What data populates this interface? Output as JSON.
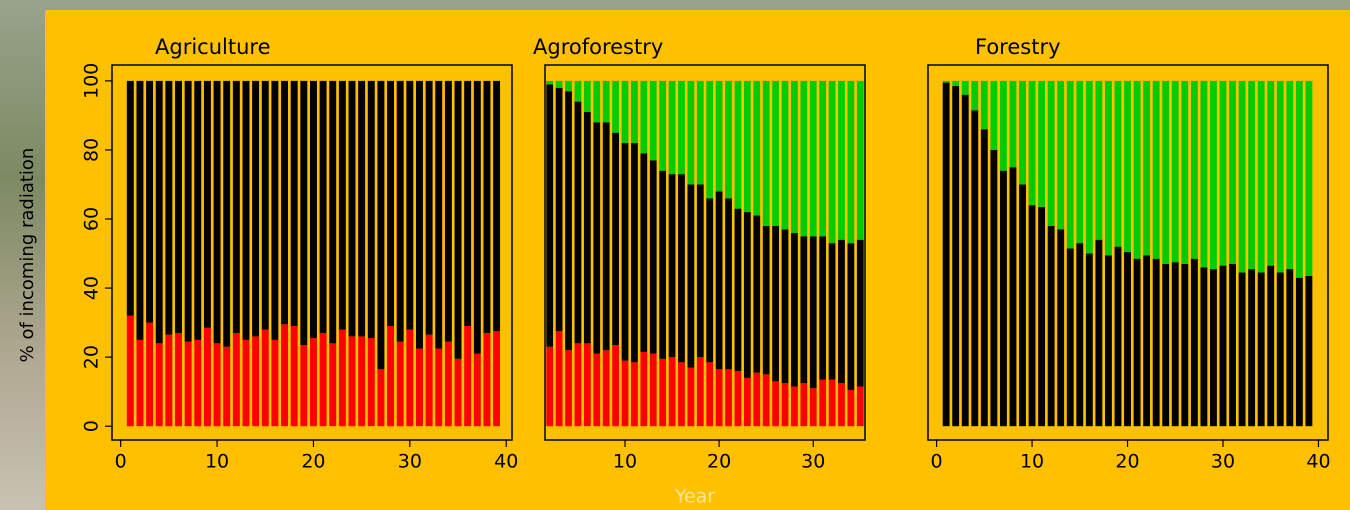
{
  "chart_data": [
    {
      "type": "bar",
      "stacked": true,
      "title": "Agriculture",
      "ylabel": "% of incoming radiation",
      "x": [
        1,
        2,
        3,
        4,
        5,
        6,
        7,
        8,
        9,
        10,
        11,
        12,
        13,
        14,
        15,
        16,
        17,
        18,
        19,
        20,
        21,
        22,
        23,
        24,
        25,
        26,
        27,
        28,
        29,
        30,
        31,
        32,
        33,
        34,
        35,
        36,
        37,
        38,
        39
      ],
      "series": [
        {
          "color": "#ff0000",
          "values": [
            32,
            25,
            30,
            24,
            26.5,
            27,
            24.5,
            25,
            28.5,
            24,
            23,
            27,
            25,
            26,
            28,
            25,
            29.5,
            29,
            23.5,
            25.5,
            27,
            24,
            28,
            26,
            26,
            25.5,
            16.5,
            29,
            24.5,
            28,
            22.5,
            26.5,
            22.5,
            24.5,
            19.5,
            29,
            21,
            27,
            27.5
          ]
        },
        {
          "color": "#000000",
          "values": [
            68,
            75,
            70,
            76,
            73.5,
            73,
            75.5,
            75,
            71.5,
            76,
            77,
            73,
            75,
            74,
            72,
            75,
            70.5,
            71,
            76.5,
            74.5,
            73,
            76,
            72,
            74,
            74,
            74.5,
            83.5,
            71,
            75.5,
            72,
            77.5,
            73.5,
            77.5,
            75.5,
            80.5,
            71,
            79,
            73,
            72.5
          ]
        }
      ],
      "xlim": [
        -0.9,
        40.6
      ],
      "xticks": [
        0,
        10,
        20,
        30,
        40
      ],
      "ylim": [
        -4,
        104.6
      ],
      "yticks": [
        0,
        20,
        40,
        60,
        80,
        100
      ]
    },
    {
      "type": "bar",
      "stacked": true,
      "title": "Agroforestry",
      "xlabel": "Year",
      "x": [
        2,
        3,
        4,
        5,
        6,
        7,
        8,
        9,
        10,
        11,
        12,
        13,
        14,
        15,
        16,
        17,
        18,
        19,
        20,
        21,
        22,
        23,
        24,
        25,
        26,
        27,
        28,
        29,
        30,
        31,
        32,
        33,
        34,
        35
      ],
      "series": [
        {
          "color": "#ff0000",
          "values": [
            23,
            27.5,
            22,
            24,
            24,
            21,
            22,
            23.5,
            19,
            18.5,
            21.5,
            21,
            19.5,
            20,
            18.5,
            17,
            20,
            18.5,
            16.5,
            16.5,
            16,
            14,
            15.5,
            15,
            13,
            12.5,
            11.5,
            12.5,
            11,
            13.5,
            13.5,
            12.5,
            10.5,
            11.5
          ]
        },
        {
          "color": "#000000",
          "values": [
            76,
            70.5,
            75,
            70,
            67,
            67,
            66,
            61.5,
            63,
            63.5,
            57.5,
            56,
            54.5,
            53,
            54.5,
            53,
            50,
            47.5,
            51.5,
            49.5,
            47,
            48,
            45.5,
            43,
            45,
            44.5,
            44.5,
            42.5,
            44,
            41.5,
            39.5,
            41.5,
            42.5,
            42.5
          ]
        },
        {
          "color": "#00cc00",
          "values": [
            1,
            2,
            3,
            6,
            9,
            12,
            12,
            15,
            18,
            18,
            21,
            23,
            26,
            27,
            27,
            30,
            30,
            34,
            32,
            34,
            37,
            38,
            39,
            42,
            42,
            43,
            44,
            45,
            45,
            45,
            47,
            46,
            47,
            46
          ]
        }
      ],
      "xlim": [
        1.5,
        35.5
      ],
      "xticks": [
        10,
        20,
        30
      ],
      "ylim": [
        -4,
        104.6
      ]
    },
    {
      "type": "bar",
      "stacked": true,
      "title": "Forestry",
      "x": [
        1,
        2,
        3,
        4,
        5,
        6,
        7,
        8,
        9,
        10,
        11,
        12,
        13,
        14,
        15,
        16,
        17,
        18,
        19,
        20,
        21,
        22,
        23,
        24,
        25,
        26,
        27,
        28,
        29,
        30,
        31,
        32,
        33,
        34,
        35,
        36,
        37,
        38,
        39
      ],
      "series": [
        {
          "color": "#000000",
          "values": [
            99.5,
            98.5,
            96,
            91.5,
            86,
            80,
            74,
            75,
            70,
            64,
            63.5,
            58,
            57,
            51.5,
            53,
            50,
            54,
            49.5,
            52,
            50.5,
            48.5,
            49.5,
            48.5,
            47,
            47.5,
            47,
            48.5,
            46,
            45.5,
            46.5,
            47,
            44.5,
            45.5,
            44.5,
            46.5,
            44.5,
            45.5,
            43,
            43.5
          ]
        },
        {
          "color": "#00cc00",
          "values": [
            0.5,
            1.5,
            4,
            8.5,
            14,
            20,
            26,
            25,
            30,
            36,
            36.5,
            42,
            43,
            48.5,
            47,
            50,
            46,
            50.5,
            48,
            49.5,
            51.5,
            50.5,
            51.5,
            53,
            52.5,
            53,
            51.5,
            54,
            54.5,
            53.5,
            53,
            55.5,
            54.5,
            55.5,
            53.5,
            55.5,
            54.5,
            57,
            56.5
          ]
        }
      ],
      "xlim": [
        -0.9,
        41
      ],
      "xticks": [
        0,
        10,
        20,
        30,
        40
      ],
      "ylim": [
        -4,
        104.6
      ]
    }
  ]
}
